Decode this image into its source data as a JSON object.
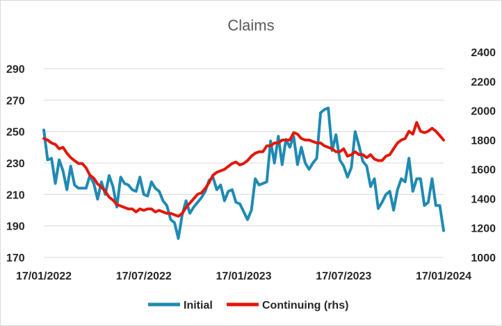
{
  "chart_data": {
    "type": "line",
    "title": "Claims",
    "grid": "horizontal",
    "legend_position": "bottom",
    "x_ticks": [
      "17/01/2022",
      "17/07/2022",
      "17/01/2023",
      "17/07/2023",
      "17/01/2024"
    ],
    "y_left": {
      "ticks": [
        "170",
        "190",
        "210",
        "230",
        "250",
        "270",
        "290"
      ],
      "range": [
        170,
        290
      ]
    },
    "y_right": {
      "ticks": [
        "1000",
        "1200",
        "1400",
        "1600",
        "1800",
        "2000",
        "2200",
        "2400"
      ],
      "range": [
        1000,
        2400
      ]
    },
    "series": [
      {
        "name": "Initial",
        "axis": "left",
        "color": "#1f8ab3",
        "values": [
          251,
          232,
          233,
          217,
          232,
          225,
          213,
          228,
          216,
          214,
          214,
          214,
          222,
          217,
          207,
          218,
          210,
          222,
          215,
          202,
          221,
          217,
          216,
          213,
          212,
          221,
          210,
          209,
          218,
          214,
          212,
          206,
          203,
          194,
          192,
          182,
          197,
          206,
          198,
          202,
          205,
          208,
          212,
          219,
          221,
          213,
          216,
          206,
          212,
          213,
          205,
          204,
          199,
          194,
          200,
          220,
          216,
          217,
          218,
          244,
          230,
          247,
          229,
          245,
          240,
          247,
          229,
          240,
          230,
          226,
          230,
          233,
          262,
          264,
          265,
          238,
          248,
          232,
          228,
          221,
          227,
          250,
          241,
          231,
          228,
          215,
          220,
          201,
          205,
          210,
          212,
          200,
          213,
          220,
          218,
          233,
          212,
          220,
          220,
          203,
          205,
          220,
          203,
          203,
          187
        ]
      },
      {
        "name": "Continuing (rhs)",
        "axis": "right",
        "color": "#e3170a",
        "values": [
          1810,
          1800,
          1780,
          1770,
          1740,
          1750,
          1710,
          1680,
          1660,
          1640,
          1640,
          1610,
          1560,
          1540,
          1500,
          1480,
          1450,
          1410,
          1390,
          1360,
          1350,
          1340,
          1330,
          1330,
          1310,
          1330,
          1320,
          1330,
          1330,
          1310,
          1320,
          1310,
          1300,
          1300,
          1290,
          1280,
          1300,
          1340,
          1370,
          1400,
          1430,
          1440,
          1470,
          1510,
          1560,
          1580,
          1590,
          1600,
          1620,
          1640,
          1650,
          1630,
          1640,
          1660,
          1690,
          1710,
          1720,
          1720,
          1760,
          1760,
          1780,
          1780,
          1800,
          1800,
          1800,
          1850,
          1840,
          1810,
          1800,
          1800,
          1790,
          1780,
          1780,
          1760,
          1750,
          1740,
          1720,
          1720,
          1740,
          1690,
          1700,
          1720,
          1700,
          1700,
          1680,
          1700,
          1670,
          1660,
          1660,
          1690,
          1700,
          1740,
          1780,
          1800,
          1810,
          1860,
          1840,
          1920,
          1860,
          1850,
          1860,
          1880,
          1860,
          1830,
          1800
        ]
      }
    ]
  }
}
